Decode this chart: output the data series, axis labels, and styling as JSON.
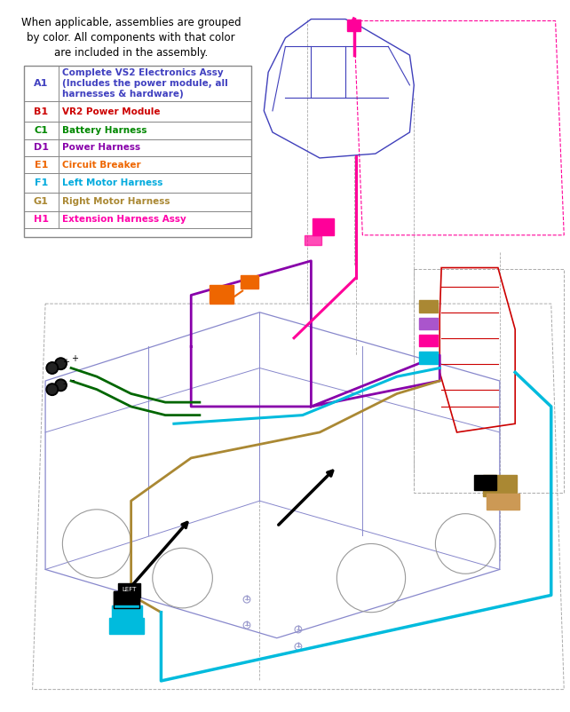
{
  "title_text": "When applicable, assemblies are grouped\nby color. All components with that color\nare included in the assembly.",
  "table_rows": [
    {
      "id": "A1",
      "id_color": "#4040c0",
      "desc": "Complete VS2 Electronics Assy\n(Includes the power module, all\nharnesses & hardware)",
      "desc_color": "#4040c0"
    },
    {
      "id": "B1",
      "id_color": "#cc0000",
      "desc": "VR2 Power Module",
      "desc_color": "#cc0000"
    },
    {
      "id": "C1",
      "id_color": "#008800",
      "desc": "Battery Harness",
      "desc_color": "#008800"
    },
    {
      "id": "D1",
      "id_color": "#8800aa",
      "desc": "Power Harness",
      "desc_color": "#8800aa"
    },
    {
      "id": "E1",
      "id_color": "#ee6600",
      "desc": "Circuit Breaker",
      "desc_color": "#ee6600"
    },
    {
      "id": "F1",
      "id_color": "#00aadd",
      "desc": "Left Motor Harness",
      "desc_color": "#00aadd"
    },
    {
      "id": "G1",
      "id_color": "#aa8833",
      "desc": "Right Motor Harness",
      "desc_color": "#aa8833"
    },
    {
      "id": "H1",
      "id_color": "#ff00aa",
      "desc": "Extension Harness Assy",
      "desc_color": "#ff00aa"
    }
  ],
  "bg_color": "#ffffff",
  "table_border_color": "#888888",
  "diagram_bg": "#ffffff"
}
